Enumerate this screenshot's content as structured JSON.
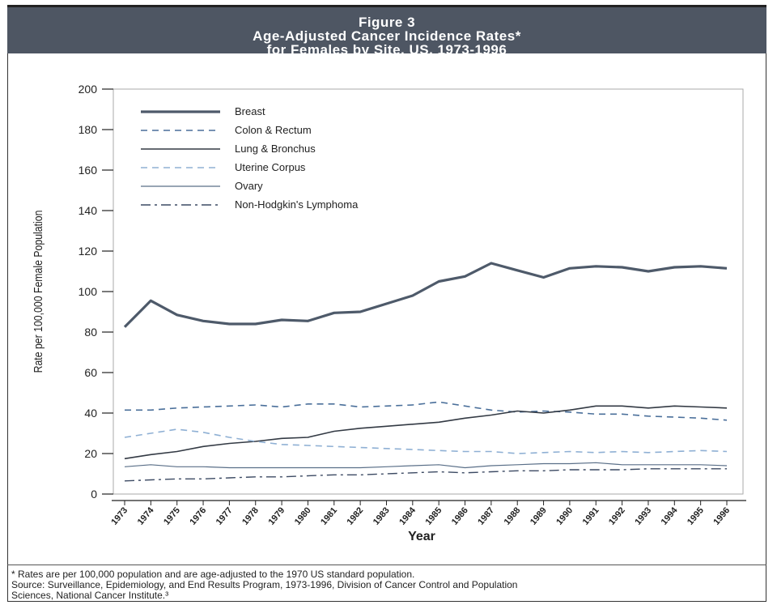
{
  "figure": {
    "title_line1": "Figure 3",
    "title_line2": "Age-Adjusted Cancer Incidence Rates*",
    "title_line3": "for Females by Site, US, 1973-1996"
  },
  "footnote": {
    "line1": "* Rates are per 100,000 population and are age-adjusted to the 1970 US standard population.",
    "line2": "Source: Surveillance, Epidemiology, and End Results Program, 1973-1996, Division of Cancer Control and Population",
    "line3": "Sciences, National Cancer Institute.³"
  },
  "chart_data": {
    "type": "line",
    "title": "Age-Adjusted Cancer Incidence Rates* for Females by Site, US, 1973-1996",
    "xlabel": "Year",
    "ylabel": "Rate per 100,000 Female Population",
    "ylim": [
      0,
      200
    ],
    "yticks": [
      0,
      20,
      40,
      60,
      80,
      100,
      120,
      140,
      160,
      180,
      200
    ],
    "grid": false,
    "legend_position": "top-left",
    "x": [
      "1973",
      "1974",
      "1975",
      "1976",
      "1977",
      "1978",
      "1979",
      "1980",
      "1981",
      "1982",
      "1983",
      "1984",
      "1985",
      "1986",
      "1987",
      "1988",
      "1989",
      "1990",
      "1991",
      "1992",
      "1993",
      "1994",
      "1995",
      "1996"
    ],
    "series": [
      {
        "name": "Breast",
        "color": "#4e5a6a",
        "style": "solid-thick",
        "values": [
          82.5,
          95.5,
          88.5,
          85.5,
          84,
          84,
          86,
          85.5,
          89.5,
          90,
          94,
          98,
          105,
          107.5,
          114,
          110.5,
          107,
          111.5,
          112.5,
          112,
          110,
          112,
          112.5,
          111.5
        ]
      },
      {
        "name": "Colon & Rectum",
        "color": "#4a6f9a",
        "style": "dashed",
        "values": [
          41.5,
          41.5,
          42.5,
          43,
          43.5,
          44,
          43,
          44.5,
          44.5,
          43,
          43.5,
          44,
          45.5,
          43.5,
          41.5,
          40.5,
          41,
          40.5,
          39.5,
          39.5,
          38.5,
          38,
          37.5,
          36.5
        ]
      },
      {
        "name": "Lung & Bronchus",
        "color": "#333a44",
        "style": "solid",
        "values": [
          17.5,
          19.5,
          21,
          23.5,
          25,
          26,
          27.5,
          28,
          31,
          32.5,
          33.5,
          34.5,
          35.5,
          37.5,
          39,
          41,
          40,
          41.5,
          43.5,
          43.5,
          42.5,
          43.5,
          43,
          42.5
        ]
      },
      {
        "name": "Uterine Corpus",
        "color": "#8fb0d4",
        "style": "dashed",
        "values": [
          28,
          30,
          32,
          30.5,
          28,
          26,
          24.5,
          24,
          23.5,
          23,
          22.5,
          22,
          21.5,
          21,
          21,
          20,
          20.5,
          21,
          20.5,
          21,
          20.5,
          21,
          21.5,
          21
        ]
      },
      {
        "name": "Ovary",
        "color": "#5a6f88",
        "style": "solid-thin",
        "values": [
          13.5,
          14.5,
          13.5,
          13.5,
          13,
          13,
          13,
          13,
          13,
          13,
          13.5,
          14,
          14.5,
          13,
          14,
          14.5,
          15,
          15,
          15.5,
          14.5,
          14.5,
          14.5,
          14.5,
          14
        ]
      },
      {
        "name": "Non-Hodgkin's Lymphoma",
        "color": "#3c4a63",
        "style": "dashdot",
        "values": [
          6.5,
          7,
          7.5,
          7.5,
          8,
          8.5,
          8.5,
          9,
          9.5,
          9.5,
          10,
          10.5,
          11,
          10.5,
          11,
          11.5,
          11.5,
          12,
          12,
          12,
          12.5,
          12.5,
          12.5,
          12.5
        ]
      }
    ]
  }
}
